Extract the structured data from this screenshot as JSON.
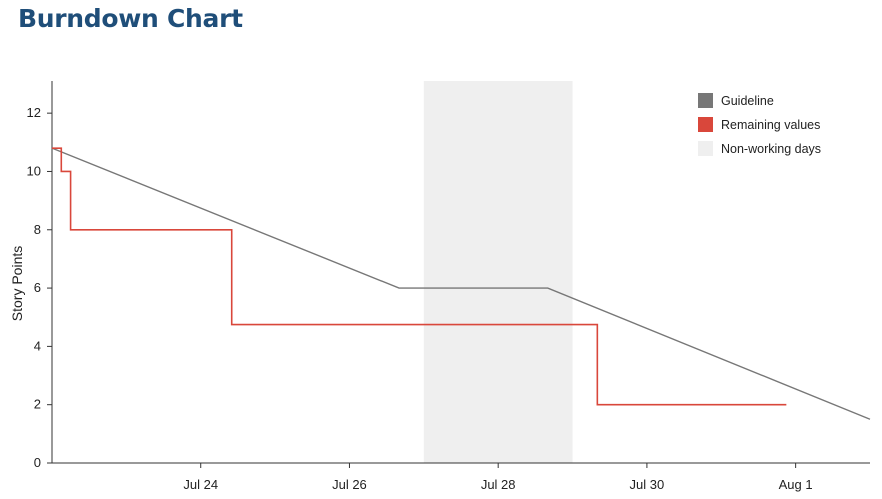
{
  "page": {
    "title": "Burndown Chart"
  },
  "chart_data": {
    "type": "line",
    "ylabel": "Story Points",
    "ylim": [
      0,
      13
    ],
    "yticks": [
      0,
      2,
      4,
      6,
      8,
      10,
      12
    ],
    "xlim": [
      "2023-07-22",
      "2023-08-02"
    ],
    "xticks": [
      {
        "date": "2023-07-24",
        "label": "Jul 24"
      },
      {
        "date": "2023-07-26",
        "label": "Jul 26"
      },
      {
        "date": "2023-07-28",
        "label": "Jul 28"
      },
      {
        "date": "2023-07-30",
        "label": "Jul 30"
      },
      {
        "date": "2023-08-01",
        "label": "Aug 1"
      }
    ],
    "grid": false,
    "legend_position": "top-right",
    "legend": [
      {
        "name": "Guideline",
        "color": "#777777"
      },
      {
        "name": "Remaining values",
        "color": "#d9473b"
      },
      {
        "name": "Non-working days",
        "color": "#efefef"
      }
    ],
    "non_working_days": {
      "start": "2023-07-27",
      "end": "2023-07-29"
    },
    "series": [
      {
        "name": "Guideline",
        "color": "#777777",
        "step": false,
        "points": [
          {
            "x": "2023-07-22",
            "y": 10.8
          },
          {
            "x": "2023-07-26 16:00",
            "y": 6.0
          },
          {
            "x": "2023-07-28 16:00",
            "y": 6.0
          },
          {
            "x": "2023-08-02",
            "y": 1.5
          }
        ]
      },
      {
        "name": "Remaining values",
        "color": "#d9473b",
        "step": true,
        "points": [
          {
            "x": "2023-07-22",
            "y": 10.8
          },
          {
            "x": "2023-07-22 03:00",
            "y": 10.0
          },
          {
            "x": "2023-07-22 06:00",
            "y": 8.0
          },
          {
            "x": "2023-07-24 10:00",
            "y": 4.75
          },
          {
            "x": "2023-07-29 08:00",
            "y": 2.0
          },
          {
            "x": "2023-07-31 21:00",
            "y": 2.0
          }
        ]
      }
    ]
  }
}
